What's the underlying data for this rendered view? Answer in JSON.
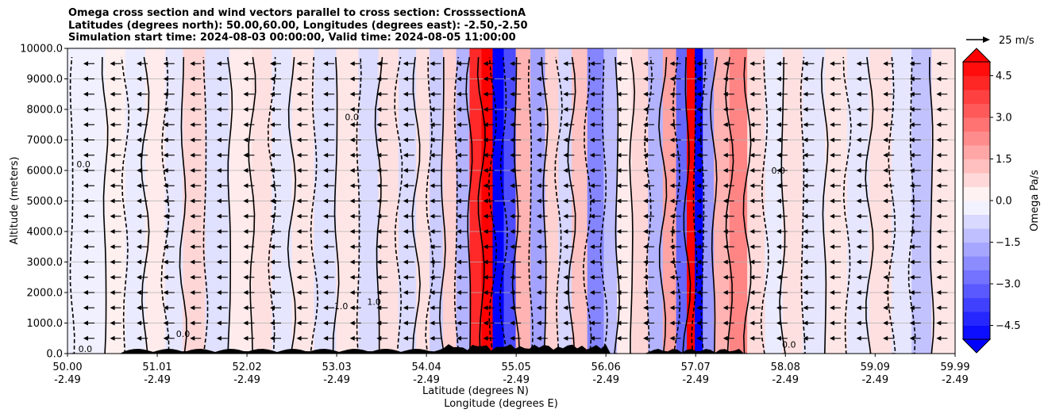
{
  "chart_data": {
    "type": "heatmap",
    "title_lines": [
      "Omega cross section and wind vectors parallel to cross section: CrosssectionA",
      "Latitudes (degrees north): 50.00,60.00, Longitudes (degrees east): -2.50,-2.50",
      "Simulation start time: 2024-08-03 00:00:00, Valid time: 2024-08-05 11:00:00"
    ],
    "ylabel": "Altitude (meters)",
    "xlabel_line1": "Latitude (degrees N)",
    "xlabel_line2": "Longitude (degrees E)",
    "xlim": [
      50.0,
      59.99
    ],
    "ylim": [
      0,
      10000
    ],
    "grid": true,
    "y_ticks": [
      0,
      1000,
      2000,
      3000,
      4000,
      5000,
      6000,
      7000,
      8000,
      9000,
      10000
    ],
    "y_tick_labels": [
      "0.0",
      "1000.0",
      "2000.0",
      "3000.0",
      "4000.0",
      "5000.0",
      "6000.0",
      "7000.0",
      "8000.0",
      "9000.0",
      "10000.0"
    ],
    "x_ticks": [
      {
        "lat": "50.00",
        "lon": "-2.49"
      },
      {
        "lat": "51.01",
        "lon": "-2.49"
      },
      {
        "lat": "52.02",
        "lon": "-2.49"
      },
      {
        "lat": "53.03",
        "lon": "-2.49"
      },
      {
        "lat": "54.04",
        "lon": "-2.49"
      },
      {
        "lat": "55.05",
        "lon": "-2.49"
      },
      {
        "lat": "56.06",
        "lon": "-2.49"
      },
      {
        "lat": "57.07",
        "lon": "-2.49"
      },
      {
        "lat": "58.08",
        "lon": "-2.49"
      },
      {
        "lat": "59.09",
        "lon": "-2.49"
      },
      {
        "lat": "59.99",
        "lon": "-2.49"
      }
    ],
    "colorbar": {
      "label": "Omega Pa/s",
      "range": [
        -5,
        5
      ],
      "ticks": [
        4.5,
        3.0,
        1.5,
        0.0,
        -1.5,
        -3.0,
        -4.5
      ],
      "tick_labels": [
        "4.5",
        "3.0",
        "1.5",
        "0.0",
        "−1.5",
        "−3.0",
        "−4.5"
      ],
      "extend": "both",
      "colors": {
        "positive": "#ff0000",
        "negative": "#0000ff",
        "neutral": "#ffffff"
      }
    },
    "vector_key": {
      "label": "25 m/s"
    },
    "omega_columns": [
      {
        "lat": 50.3,
        "value": -0.3
      },
      {
        "lat": 50.55,
        "value": 0.3
      },
      {
        "lat": 50.75,
        "value": -0.4
      },
      {
        "lat": 51.0,
        "value": 0.4
      },
      {
        "lat": 51.2,
        "value": -0.5
      },
      {
        "lat": 51.4,
        "value": 0.8
      },
      {
        "lat": 51.7,
        "value": -0.6
      },
      {
        "lat": 51.95,
        "value": 0.4
      },
      {
        "lat": 52.2,
        "value": 0.6
      },
      {
        "lat": 52.4,
        "value": -0.5
      },
      {
        "lat": 52.65,
        "value": 0.5
      },
      {
        "lat": 52.9,
        "value": -0.6
      },
      {
        "lat": 53.15,
        "value": 0.5
      },
      {
        "lat": 53.4,
        "value": -0.7
      },
      {
        "lat": 53.6,
        "value": 0.6
      },
      {
        "lat": 53.85,
        "value": -0.7
      },
      {
        "lat": 54.0,
        "value": 0.6
      },
      {
        "lat": 54.15,
        "value": -1.0
      },
      {
        "lat": 54.3,
        "value": 0.9
      },
      {
        "lat": 54.45,
        "value": -1.5
      },
      {
        "lat": 54.6,
        "value": 4.2
      },
      {
        "lat": 54.72,
        "value": 6.0
      },
      {
        "lat": 54.85,
        "value": -6.0
      },
      {
        "lat": 54.97,
        "value": -3.5
      },
      {
        "lat": 55.12,
        "value": 1.5
      },
      {
        "lat": 55.3,
        "value": -1.8
      },
      {
        "lat": 55.45,
        "value": 0.9
      },
      {
        "lat": 55.6,
        "value": -0.8
      },
      {
        "lat": 55.75,
        "value": 1.2
      },
      {
        "lat": 55.95,
        "value": -2.4
      },
      {
        "lat": 56.12,
        "value": -1.3
      },
      {
        "lat": 56.25,
        "value": 0.4
      },
      {
        "lat": 56.45,
        "value": 0.8
      },
      {
        "lat": 56.62,
        "value": -1.5
      },
      {
        "lat": 56.78,
        "value": 1.8
      },
      {
        "lat": 56.92,
        "value": -3.0
      },
      {
        "lat": 57.02,
        "value": 6.0
      },
      {
        "lat": 57.1,
        "value": -6.0
      },
      {
        "lat": 57.2,
        "value": -2.0
      },
      {
        "lat": 57.35,
        "value": 1.5
      },
      {
        "lat": 57.55,
        "value": 2.4
      },
      {
        "lat": 57.75,
        "value": 0.7
      },
      {
        "lat": 57.95,
        "value": -0.4
      },
      {
        "lat": 58.15,
        "value": 0.6
      },
      {
        "lat": 58.4,
        "value": -0.5
      },
      {
        "lat": 58.65,
        "value": 0.5
      },
      {
        "lat": 58.9,
        "value": -0.5
      },
      {
        "lat": 59.15,
        "value": 0.6
      },
      {
        "lat": 59.4,
        "value": -0.5
      },
      {
        "lat": 59.6,
        "value": -1.2
      },
      {
        "lat": 59.85,
        "value": 0.5
      }
    ],
    "wind_vectors": {
      "direction": "toward decreasing latitude",
      "approx_speed_m_s": 8
    },
    "contour_labels": [
      {
        "text": "0.0",
        "lat": 50.18,
        "alt": 6100
      },
      {
        "text": "0.0",
        "lat": 50.2,
        "alt": 50
      },
      {
        "text": "0.0",
        "lat": 51.3,
        "alt": 550
      },
      {
        "text": "1.0",
        "lat": 53.08,
        "alt": 1450
      },
      {
        "text": "0.0",
        "lat": 53.2,
        "alt": 7650
      },
      {
        "text": "1.0",
        "lat": 53.45,
        "alt": 1600
      },
      {
        "text": "0.0",
        "lat": 58.0,
        "alt": 5900
      },
      {
        "text": "0.0",
        "lat": 58.12,
        "alt": 200
      }
    ]
  }
}
